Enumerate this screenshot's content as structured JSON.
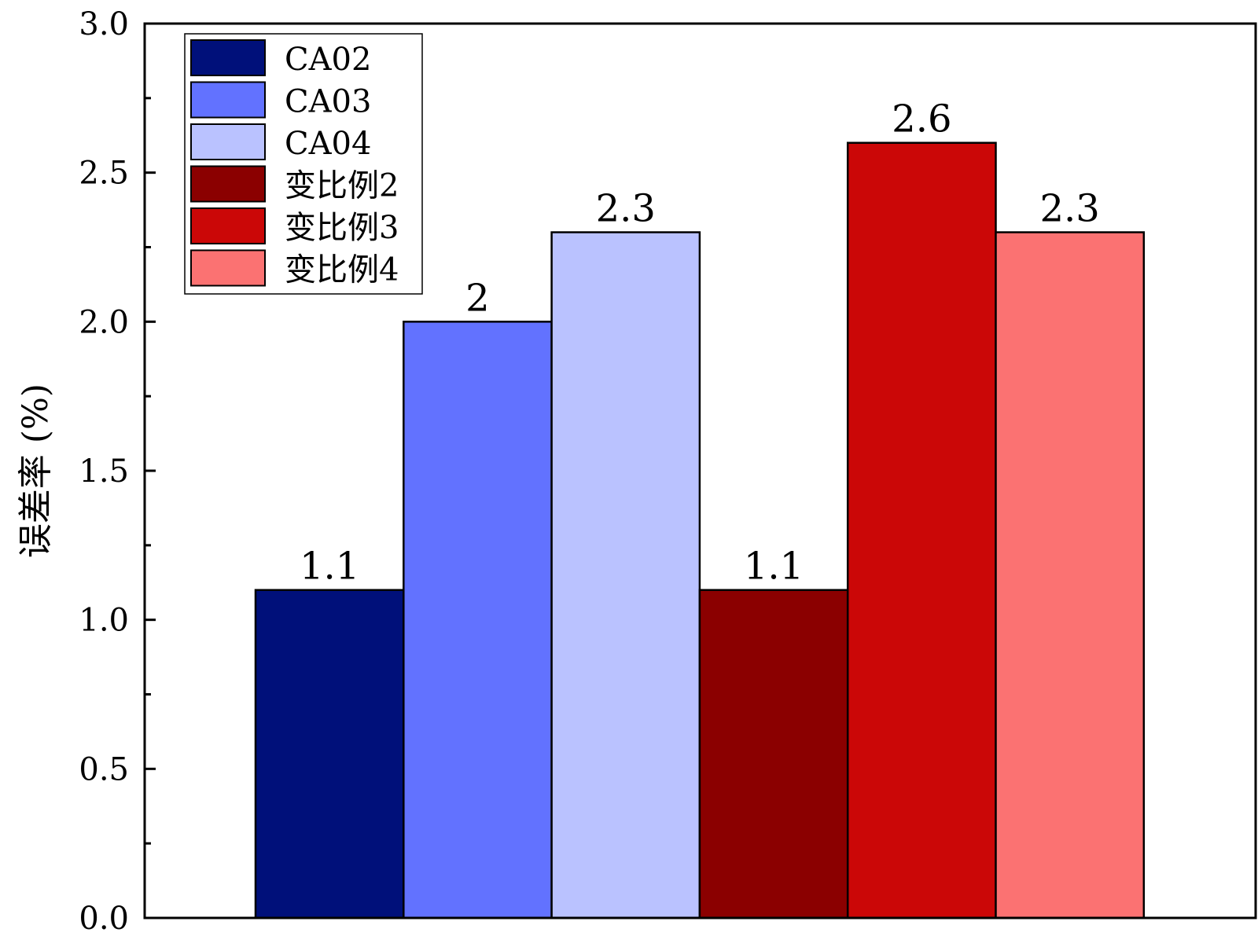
{
  "chart_data": {
    "type": "bar",
    "title": "",
    "xlabel": "",
    "ylabel": "误差率 (%)",
    "ylim": [
      0,
      3.0
    ],
    "yticks": [
      "0.0",
      "0.5",
      "1.0",
      "1.5",
      "2.0",
      "2.5",
      "3.0"
    ],
    "grid": false,
    "legend_position": "top-left",
    "series": [
      {
        "name": "CA02",
        "value": 1.1,
        "label": "1.1",
        "color": "#00107a"
      },
      {
        "name": "CA03",
        "value": 2.0,
        "label": "2",
        "color": "#6272ff"
      },
      {
        "name": "CA04",
        "value": 2.3,
        "label": "2.3",
        "color": "#bac2ff"
      },
      {
        "name": "变比例2",
        "value": 1.1,
        "label": "1.1",
        "color": "#8b0000"
      },
      {
        "name": "变比例3",
        "value": 2.6,
        "label": "2.6",
        "color": "#cb0707"
      },
      {
        "name": "变比例4",
        "value": 2.3,
        "label": "2.3",
        "color": "#fb7272"
      }
    ]
  }
}
